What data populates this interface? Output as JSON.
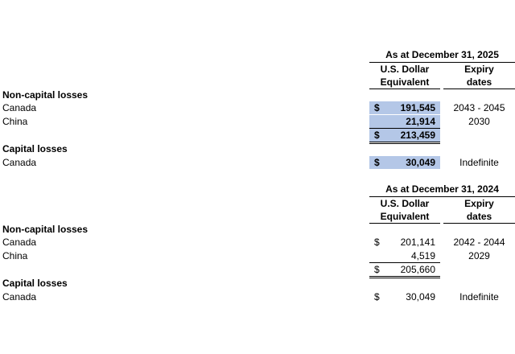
{
  "tables": [
    {
      "period": "As at December 31, 2025",
      "col_amount": [
        "U.S. Dollar",
        "Equivalent"
      ],
      "col_expiry": [
        "Expiry",
        "dates"
      ],
      "noncap_heading": "Non-capital losses",
      "noncap": [
        {
          "label": "Canada",
          "currency": "$",
          "amount": "191,545",
          "expiry": "2043 - 2045"
        },
        {
          "label": "China",
          "currency": "",
          "amount": "21,914",
          "expiry": "2030"
        }
      ],
      "noncap_total": {
        "currency": "$",
        "amount": "213,459"
      },
      "cap_heading": "Capital losses",
      "cap": [
        {
          "label": "Canada",
          "currency": "$",
          "amount": "30,049",
          "expiry": "Indefinite"
        }
      ],
      "highlight": "#b4c7e7",
      "bold_amounts": true
    },
    {
      "period": "As at December 31, 2024",
      "col_amount": [
        "U.S. Dollar",
        "Equivalent"
      ],
      "col_expiry": [
        "Expiry",
        "dates"
      ],
      "noncap_heading": "Non-capital losses",
      "noncap": [
        {
          "label": "Canada",
          "currency": "$",
          "amount": "201,141",
          "expiry": "2042 - 2044"
        },
        {
          "label": "China",
          "currency": "",
          "amount": "4,519",
          "expiry": "2029"
        }
      ],
      "noncap_total": {
        "currency": "$",
        "amount": "205,660"
      },
      "cap_heading": "Capital losses",
      "cap": [
        {
          "label": "Canada",
          "currency": "$",
          "amount": "30,049",
          "expiry": "Indefinite"
        }
      ],
      "highlight": null,
      "bold_amounts": false
    }
  ]
}
